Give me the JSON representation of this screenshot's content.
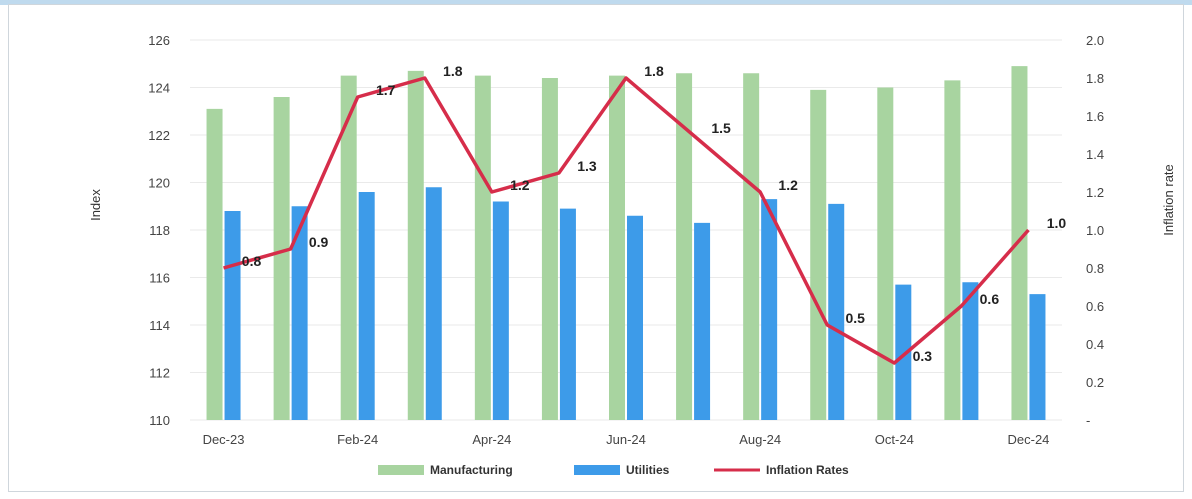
{
  "chart_data": {
    "type": "bar",
    "categories": [
      "Dec-23",
      "Jan-24",
      "Feb-24",
      "Mar-24",
      "Apr-24",
      "May-24",
      "Jun-24",
      "Jul-24",
      "Aug-24",
      "Sep-24",
      "Oct-24",
      "Nov-24",
      "Dec-24"
    ],
    "x_tick_labels": [
      "Dec-23",
      "",
      "Feb-24",
      "",
      "Apr-24",
      "",
      "Jun-24",
      "",
      "Aug-24",
      "",
      "Oct-24",
      "",
      "Dec-24"
    ],
    "series": [
      {
        "name": "Manufacturing",
        "type": "bar",
        "axis": "left",
        "color": "#a8d4a0",
        "values": [
          123.1,
          123.6,
          124.5,
          124.7,
          124.5,
          124.4,
          124.5,
          124.6,
          124.6,
          123.9,
          124.0,
          124.3,
          124.9
        ]
      },
      {
        "name": "Utilities",
        "type": "bar",
        "axis": "left",
        "color": "#3d9be9",
        "values": [
          118.8,
          119.0,
          119.6,
          119.8,
          119.2,
          118.9,
          118.6,
          118.3,
          119.3,
          119.1,
          115.7,
          115.8,
          115.3
        ]
      },
      {
        "name": "Inflation Rates",
        "type": "line",
        "axis": "right",
        "color": "#d62d4a",
        "values": [
          0.8,
          0.9,
          1.7,
          1.8,
          1.2,
          1.3,
          1.8,
          1.5,
          1.2,
          0.5,
          0.3,
          0.6,
          1.0
        ],
        "labels": [
          "0.8",
          "0.9",
          "1.7",
          "1.8",
          "1.2",
          "1.3",
          "1.8",
          "1.5",
          "1.2",
          "0.5",
          "0.3",
          "0.6",
          "1.0"
        ]
      }
    ],
    "ylabel": "Index",
    "y2label": "Inflation rate",
    "ylim": [
      110,
      126
    ],
    "y_ticks": [
      "110",
      "112",
      "114",
      "116",
      "118",
      "120",
      "122",
      "124",
      "126"
    ],
    "y2lim": [
      0,
      2.0
    ],
    "y2_ticks": [
      "-",
      "0.2",
      "0.4",
      "0.6",
      "0.8",
      "1.0",
      "1.2",
      "1.4",
      "1.6",
      "1.8",
      "2.0"
    ],
    "grid": true,
    "legend_position": "bottom"
  }
}
